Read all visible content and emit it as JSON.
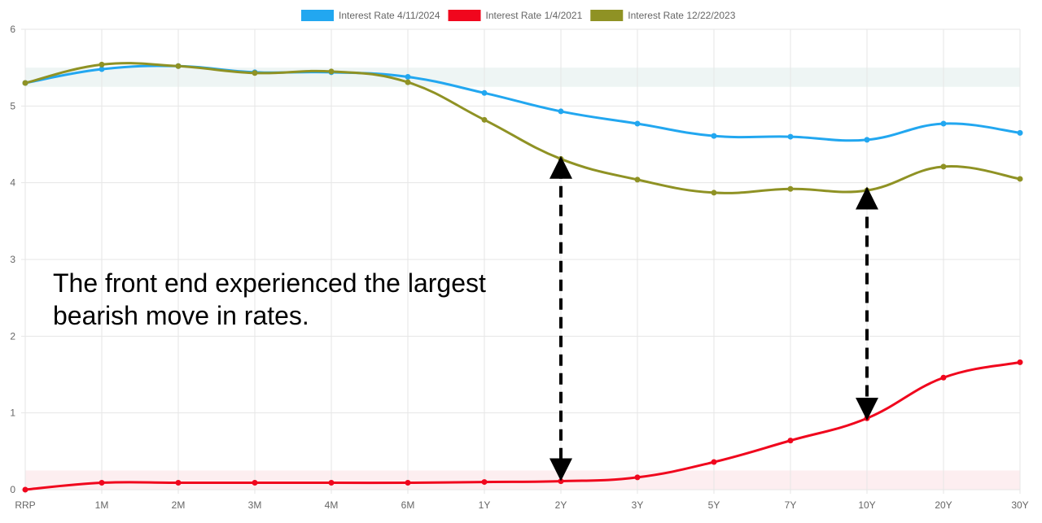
{
  "chart_data": {
    "type": "line",
    "title": "",
    "xlabel": "",
    "ylabel": "",
    "categories": [
      "RRP",
      "1M",
      "2M",
      "3M",
      "4M",
      "6M",
      "1Y",
      "2Y",
      "3Y",
      "5Y",
      "7Y",
      "10Y",
      "20Y",
      "30Y"
    ],
    "yticks": [
      "0",
      "1",
      "2",
      "3",
      "4",
      "5",
      "6"
    ],
    "ylim": [
      0,
      6
    ],
    "grid": true,
    "legend_position": "top-center",
    "series": [
      {
        "name": "Interest Rate 4/11/2024",
        "color": "#22a7f0",
        "values": [
          5.3,
          5.48,
          5.52,
          5.44,
          5.44,
          5.38,
          5.17,
          4.93,
          4.77,
          4.61,
          4.6,
          4.56,
          4.77,
          4.65
        ]
      },
      {
        "name": "Interest Rate 1/4/2021",
        "color": "#f0061d",
        "values": [
          0.0,
          0.09,
          0.09,
          0.09,
          0.09,
          0.09,
          0.1,
          0.11,
          0.16,
          0.36,
          0.64,
          0.93,
          1.46,
          1.66
        ]
      },
      {
        "name": "Interest Rate 12/22/2023",
        "color": "#8f9224",
        "values": [
          5.3,
          5.54,
          5.52,
          5.43,
          5.45,
          5.31,
          4.82,
          4.31,
          4.04,
          3.87,
          3.92,
          3.9,
          4.21,
          4.05
        ]
      }
    ],
    "bands": [
      {
        "from": 5.25,
        "to": 5.5,
        "color": "#eef5f4"
      },
      {
        "from": 0.0,
        "to": 0.25,
        "color": "#fdeef0"
      }
    ],
    "arrows": [
      {
        "category": "2Y",
        "from": 4.2,
        "to": 0.26
      },
      {
        "category": "10Y",
        "from": 3.8,
        "to": 1.05
      }
    ],
    "annotation": {
      "lines": [
        "The front end experienced the largest",
        "bearish move in rates."
      ]
    }
  }
}
